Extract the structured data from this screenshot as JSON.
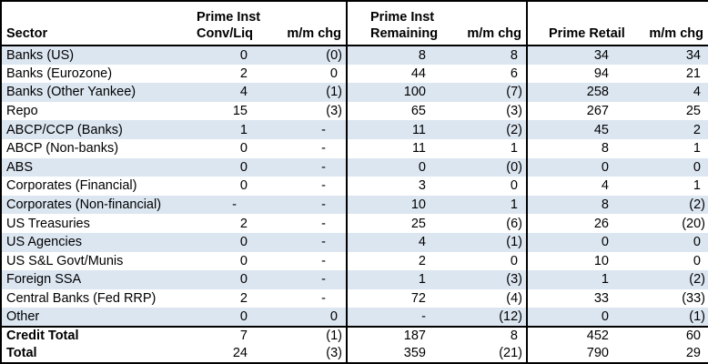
{
  "colors": {
    "stripe_row": "#dce6f1",
    "border": "#000000",
    "text": "#000000",
    "background": "#ffffff"
  },
  "table": {
    "header": {
      "sector": "Sector",
      "group1": {
        "line1": "Prime Inst",
        "line2": "Conv/Liq",
        "chg": "m/m chg"
      },
      "group2": {
        "line1": "Prime Inst",
        "line2": "Remaining",
        "chg": "m/m chg"
      },
      "group3": {
        "line2": "Prime Retail",
        "chg": "m/m chg"
      }
    },
    "columns": [
      "Sector",
      "Prime Inst Conv/Liq",
      "m/m chg",
      "Prime Inst Remaining",
      "m/m chg",
      "Prime Retail",
      "m/m chg"
    ],
    "rows": [
      {
        "sector": "Banks (US)",
        "cells": [
          "0",
          "(0)",
          "8",
          "8",
          "34",
          "34"
        ]
      },
      {
        "sector": "Banks (Eurozone)",
        "cells": [
          "2",
          "0",
          "44",
          "6",
          "94",
          "21"
        ]
      },
      {
        "sector": "Banks (Other Yankee)",
        "cells": [
          "4",
          "(1)",
          "100",
          "(7)",
          "258",
          "4"
        ]
      },
      {
        "sector": "Repo",
        "cells": [
          "15",
          "(3)",
          "65",
          "(3)",
          "267",
          "25"
        ]
      },
      {
        "sector": "ABCP/CCP (Banks)",
        "cells": [
          "1",
          "-",
          "11",
          "(2)",
          "45",
          "2"
        ]
      },
      {
        "sector": "ABCP (Non-banks)",
        "cells": [
          "0",
          "-",
          "11",
          "1",
          "8",
          "1"
        ]
      },
      {
        "sector": "ABS",
        "cells": [
          "0",
          "-",
          "0",
          "(0)",
          "0",
          "0"
        ]
      },
      {
        "sector": "Corporates (Financial)",
        "cells": [
          "0",
          "-",
          "3",
          "0",
          "4",
          "1"
        ]
      },
      {
        "sector": "Corporates (Non-financial)",
        "cells": [
          "-",
          "-",
          "10",
          "1",
          "8",
          "(2)"
        ]
      },
      {
        "sector": "US Treasuries",
        "cells": [
          "2",
          "-",
          "25",
          "(6)",
          "26",
          "(20)"
        ]
      },
      {
        "sector": "US Agencies",
        "cells": [
          "0",
          "-",
          "4",
          "(1)",
          "0",
          "0"
        ]
      },
      {
        "sector": "US S&L Govt/Munis",
        "cells": [
          "0",
          "-",
          "2",
          "0",
          "10",
          "0"
        ]
      },
      {
        "sector": "Foreign SSA",
        "cells": [
          "0",
          "-",
          "1",
          "(3)",
          "1",
          "(2)"
        ]
      },
      {
        "sector": "Central Banks (Fed RRP)",
        "cells": [
          "2",
          "-",
          "72",
          "(4)",
          "33",
          "(33)"
        ]
      },
      {
        "sector": "Other",
        "cells": [
          "0",
          "0",
          "-",
          "(12)",
          "0",
          "(1)"
        ]
      }
    ],
    "totals": [
      {
        "sector": "Credit Total",
        "cells": [
          "7",
          "(1)",
          "187",
          "8",
          "452",
          "60"
        ]
      },
      {
        "sector": "Total",
        "cells": [
          "24",
          "(3)",
          "359",
          "(21)",
          "790",
          "29"
        ]
      }
    ]
  }
}
